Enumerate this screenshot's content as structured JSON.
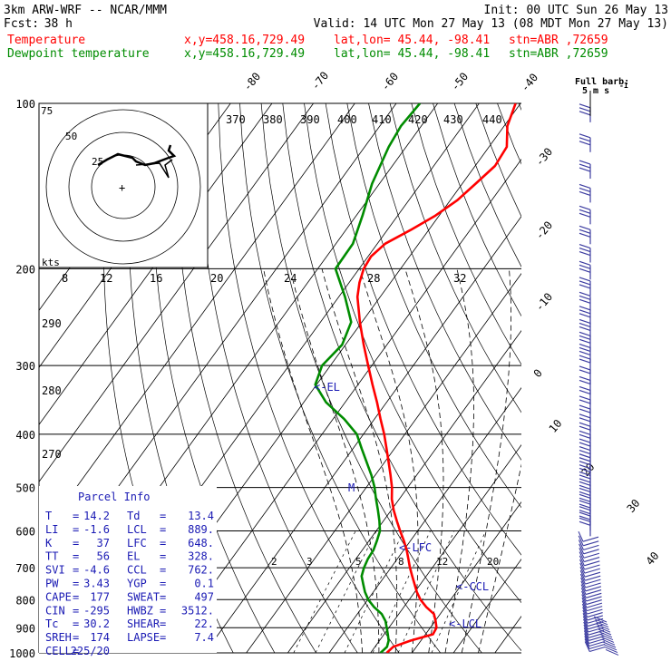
{
  "header": {
    "line1_left": "3km ARW-WRF -- NCAR/MMM",
    "line1_right": "Init: 00 UTC Sun 26 May 13",
    "line2_left_label": "Fcst:",
    "line2_left_value": "38 h",
    "line2_right": "Valid: 14 UTC Mon 27 May 13 (08 MDT Mon 27 May 13)",
    "temperature_label": "Temperature",
    "dewpoint_label": "Dewpoint temperature",
    "xy_text": "x,y=458.16,729.49",
    "latlon_text": "lat,lon= 45.44, -98.41",
    "stn_text": "stn=ABR ,72659"
  },
  "colors": {
    "temperature": "#ff0000",
    "dewpoint": "#008c00",
    "text": "#000000",
    "parcel_info": "#1a1ab4",
    "wind_barbs": "#3c3ca0"
  },
  "barb_legend": {
    "line1": "Full barb:",
    "line2": "5 m s",
    "exp": "-1"
  },
  "hodograph": {
    "kts_label": "kts",
    "ring_labels": [
      "25",
      "50",
      "75"
    ],
    "center_mark": "+"
  },
  "chart_data": {
    "type": "skew-t",
    "pressure_levels": [
      100,
      200,
      300,
      400,
      500,
      600,
      700,
      800,
      900,
      1000
    ],
    "isotherm_labels_top": [
      "-80",
      "-70",
      "-60",
      "-50",
      "-40"
    ],
    "isotherm_labels_right": [
      "-30",
      "-20",
      "-10",
      "0",
      "10",
      "20",
      "30",
      "40"
    ],
    "theta_labels_top": [
      "370",
      "380",
      "390",
      "400",
      "410",
      "420",
      "430",
      "440"
    ],
    "theta_labels_left": [
      "290",
      "280",
      "270"
    ],
    "theta_e_labels": [
      "8",
      "12",
      "16",
      "20",
      "24",
      "28",
      "32"
    ],
    "mixing_ratio_labels": [
      "2",
      "3",
      "5",
      "8",
      "12",
      "20"
    ],
    "level_markers": {
      "el": "<-EL",
      "lfc": "<-LFC",
      "ccl": "<-CCL",
      "lcl": "<-LCL",
      "m": "M"
    },
    "series": [
      {
        "name": "Temperature",
        "points": [
          [
            1000,
            13.9
          ],
          [
            975,
            14.4
          ],
          [
            950,
            17.5
          ],
          [
            925,
            21.8
          ],
          [
            900,
            21.5
          ],
          [
            875,
            20.1
          ],
          [
            850,
            18.5
          ],
          [
            825,
            15.4
          ],
          [
            800,
            12.7
          ],
          [
            775,
            10.5
          ],
          [
            750,
            8.6
          ],
          [
            725,
            6.6
          ],
          [
            700,
            4.6
          ],
          [
            675,
            2.7
          ],
          [
            650,
            0.7
          ],
          [
            625,
            -1.6
          ],
          [
            600,
            -4.2
          ],
          [
            575,
            -6.8
          ],
          [
            550,
            -9.4
          ],
          [
            525,
            -11.8
          ],
          [
            500,
            -13.8
          ],
          [
            475,
            -16.3
          ],
          [
            450,
            -19.0
          ],
          [
            425,
            -21.9
          ],
          [
            400,
            -25.0
          ],
          [
            375,
            -28.6
          ],
          [
            350,
            -32.3
          ],
          [
            325,
            -36.5
          ],
          [
            300,
            -40.9
          ],
          [
            275,
            -45.6
          ],
          [
            250,
            -50.5
          ],
          [
            225,
            -55.5
          ],
          [
            212,
            -57.5
          ],
          [
            200,
            -58.9
          ],
          [
            190,
            -59.3
          ],
          [
            180,
            -58.1
          ],
          [
            170,
            -54.4
          ],
          [
            160,
            -50.9
          ],
          [
            150,
            -48.3
          ],
          [
            140,
            -46.8
          ],
          [
            130,
            -45.2
          ],
          [
            120,
            -45.7
          ],
          [
            110,
            -49.2
          ],
          [
            100,
            -51.2
          ]
        ]
      },
      {
        "name": "Dewpoint temperature",
        "points": [
          [
            1000,
            12.4
          ],
          [
            975,
            12.9
          ],
          [
            950,
            12.2
          ],
          [
            925,
            10.9
          ],
          [
            900,
            9.5
          ],
          [
            875,
            8.0
          ],
          [
            850,
            5.9
          ],
          [
            825,
            2.8
          ],
          [
            800,
            0.1
          ],
          [
            775,
            -2.0
          ],
          [
            750,
            -3.8
          ],
          [
            725,
            -5.6
          ],
          [
            700,
            -6.5
          ],
          [
            675,
            -7.1
          ],
          [
            650,
            -7.3
          ],
          [
            625,
            -8.1
          ],
          [
            600,
            -9.1
          ],
          [
            575,
            -11.0
          ],
          [
            550,
            -13.2
          ],
          [
            525,
            -15.6
          ],
          [
            500,
            -18.0
          ],
          [
            475,
            -20.9
          ],
          [
            450,
            -24.3
          ],
          [
            425,
            -27.9
          ],
          [
            400,
            -31.6
          ],
          [
            375,
            -37.4
          ],
          [
            350,
            -44.6
          ],
          [
            325,
            -50.3
          ],
          [
            300,
            -52.0
          ],
          [
            275,
            -50.8
          ],
          [
            250,
            -52.6
          ],
          [
            225,
            -58.5
          ],
          [
            200,
            -65.7
          ],
          [
            180,
            -65.9
          ],
          [
            160,
            -68.5
          ],
          [
            140,
            -71.8
          ],
          [
            120,
            -74.2
          ],
          [
            110,
            -74.9
          ],
          [
            100,
            -74.3
          ]
        ]
      }
    ]
  },
  "parcel_info": {
    "title": "Parcel Info",
    "rows": [
      [
        "T",
        "=",
        "14.2",
        "Td",
        "=",
        "13.4"
      ],
      [
        "LI",
        "=",
        "-1.6",
        "LCL",
        "=",
        "889."
      ],
      [
        "K",
        "=",
        "37",
        "LFC",
        "=",
        "648."
      ],
      [
        "TT",
        "=",
        "56",
        "EL",
        "=",
        "328."
      ],
      [
        "SVI",
        "=",
        "-4.6",
        "CCL",
        "=",
        "762."
      ],
      [
        "PW",
        "=",
        "3.43",
        "YGP",
        "=",
        "0.1"
      ],
      [
        "CAPE",
        "=",
        "177",
        "SWEAT",
        "=",
        "497"
      ],
      [
        "CIN",
        "=",
        "-295",
        "HWBZ",
        "=",
        "3512."
      ],
      [
        "Tc",
        "=",
        "30.2",
        "SHEAR",
        "=",
        "22."
      ],
      [
        "SREH",
        "=",
        "174",
        "LAPSE",
        "=",
        "7.4"
      ],
      [
        "CELL",
        "=",
        "225/20",
        "",
        "",
        ""
      ]
    ]
  }
}
